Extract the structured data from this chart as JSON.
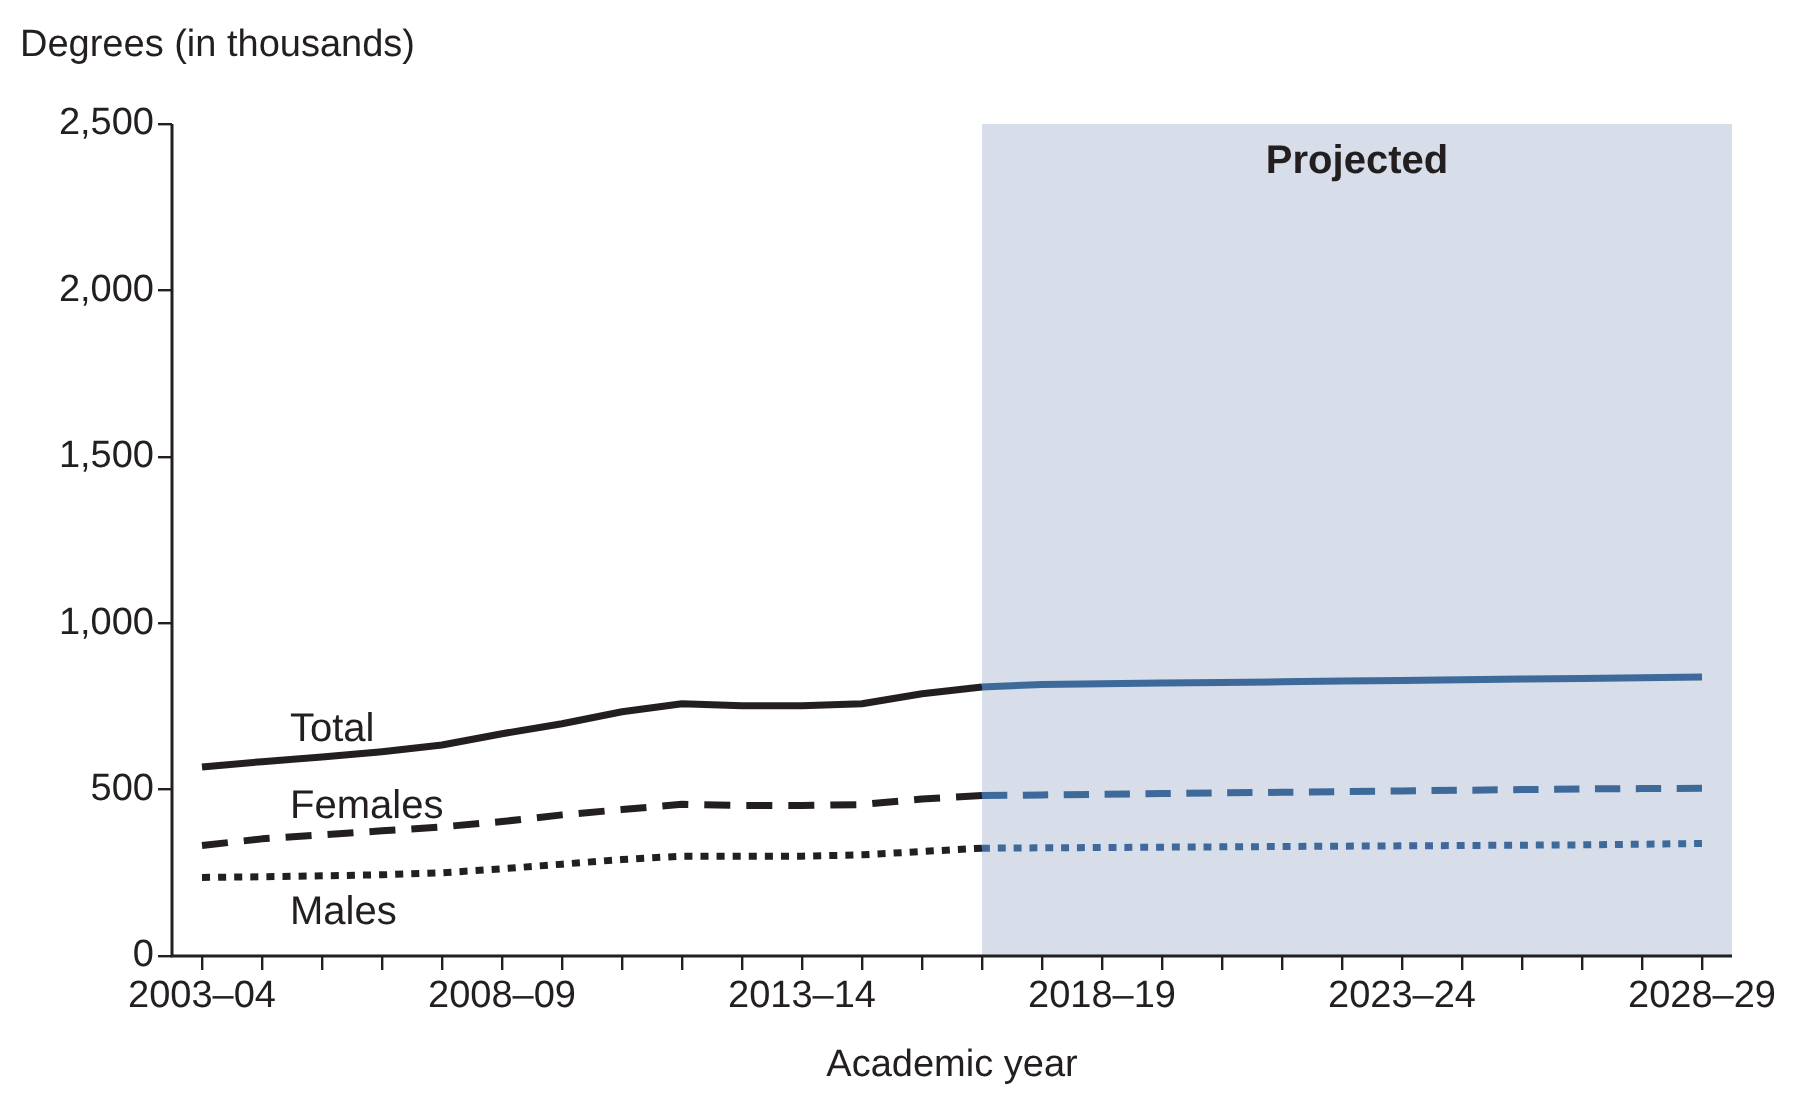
{
  "chart_data": {
    "type": "line",
    "ylabel": "Degrees (in thousands)",
    "xlabel": "Academic year",
    "xlim": [
      "2002-07",
      "2028-07"
    ],
    "xticks": [
      {
        "value": "2003",
        "label": "2003–04"
      },
      {
        "value": "2004",
        "label": null
      },
      {
        "value": "2005",
        "label": null
      },
      {
        "value": "2006",
        "label": null
      },
      {
        "value": "2007",
        "label": null
      },
      {
        "value": "2008",
        "label": "2008–09"
      },
      {
        "value": "2009",
        "label": null
      },
      {
        "value": "2010",
        "label": null
      },
      {
        "value": "2011",
        "label": null
      },
      {
        "value": "2012",
        "label": null
      },
      {
        "value": "2013",
        "label": "2013–14"
      },
      {
        "value": "2014",
        "label": null
      },
      {
        "value": "2015",
        "label": null
      },
      {
        "value": "2016",
        "label": null
      },
      {
        "value": "2017",
        "label": null
      },
      {
        "value": "2018",
        "label": "2018–19"
      },
      {
        "value": "2019",
        "label": null
      },
      {
        "value": "2020",
        "label": null
      },
      {
        "value": "2021",
        "label": null
      },
      {
        "value": "2022",
        "label": null
      },
      {
        "value": "2023",
        "label": "2023–24"
      },
      {
        "value": "2024",
        "label": null
      },
      {
        "value": "2025",
        "label": null
      },
      {
        "value": "2026",
        "label": null
      },
      {
        "value": "2027",
        "label": null
      },
      {
        "value": "2028",
        "label": "2028–29"
      }
    ],
    "ylim": [
      0,
      2500
    ],
    "yticks": [
      0,
      500,
      {
        "value": 1000,
        "label": "1,000"
      },
      {
        "value": 1500,
        "label": "1,500"
      },
      {
        "value": 2000,
        "label": "2,000"
      },
      {
        "value": 2500,
        "label": "2,500"
      }
    ],
    "grid": false,
    "legend": false,
    "bands": [
      {
        "axis": "x",
        "from": "2016",
        "to": "2028-07",
        "label": "Projected",
        "color": "#d7dde9"
      }
    ],
    "series": [
      {
        "name": "Total",
        "line_style": "solid",
        "color": "#231f20",
        "x": [
          "2003",
          "2004",
          "2005",
          "2006",
          "2007",
          "2008",
          "2009",
          "2010",
          "2011",
          "2012",
          "2013",
          "2014",
          "2015",
          "2016"
        ],
        "values": [
          568,
          584,
          598,
          614,
          634,
          668,
          698,
          734,
          758,
          752,
          752,
          758,
          788,
          808
        ]
      },
      {
        "name": "Females",
        "line_style": "dashed",
        "color": "#231f20",
        "x": [
          "2003",
          "2004",
          "2005",
          "2006",
          "2007",
          "2008",
          "2009",
          "2010",
          "2011",
          "2012",
          "2013",
          "2014",
          "2015",
          "2016"
        ],
        "values": [
          332,
          352,
          364,
          376,
          388,
          404,
          424,
          440,
          456,
          452,
          452,
          455,
          472,
          482
        ]
      },
      {
        "name": "Males",
        "line_style": "dotted",
        "color": "#231f20",
        "x": [
          "2003",
          "2004",
          "2005",
          "2006",
          "2007",
          "2008",
          "2009",
          "2010",
          "2011",
          "2012",
          "2013",
          "2014",
          "2015",
          "2016"
        ],
        "values": [
          236,
          238,
          241,
          244,
          250,
          262,
          276,
          290,
          300,
          300,
          300,
          304,
          314,
          324
        ]
      },
      {
        "line_style": "solid",
        "color": "#3d6a9a",
        "x": [
          "2016",
          "2017",
          "2018",
          "2019",
          "2020",
          "2021",
          "2022",
          "2023",
          "2024",
          "2025",
          "2026",
          "2027",
          "2028"
        ],
        "values": [
          808,
          816,
          818,
          820,
          822,
          824,
          826,
          828,
          830,
          832,
          834,
          836,
          838
        ]
      },
      {
        "line_style": "dashed",
        "color": "#3d6a9a",
        "x": [
          "2016",
          "2017",
          "2018",
          "2019",
          "2020",
          "2021",
          "2022",
          "2023",
          "2024",
          "2025",
          "2026",
          "2027",
          "2028"
        ],
        "values": [
          482,
          484,
          486,
          488,
          490,
          492,
          494,
          496,
          498,
          500,
          502,
          503,
          504
        ]
      },
      {
        "line_style": "dotted",
        "color": "#3d6a9a",
        "x": [
          "2016",
          "2017",
          "2018",
          "2019",
          "2020",
          "2021",
          "2022",
          "2023",
          "2024",
          "2025",
          "2026",
          "2027",
          "2028"
        ],
        "values": [
          324,
          325,
          326,
          327,
          328,
          329,
          330,
          331,
          332,
          333,
          334,
          336,
          338
        ]
      }
    ]
  }
}
